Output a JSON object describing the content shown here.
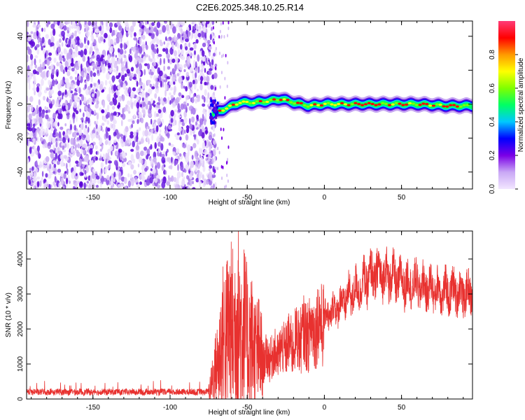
{
  "title": "C2E6.2025.348.10.25.R14",
  "chart_data": [
    {
      "type": "heatmap",
      "xlabel": "Height of straight line (km)",
      "ylabel": "Frequency (Hz)",
      "xlim": [
        -193,
        96
      ],
      "ylim": [
        -50,
        49
      ],
      "xticks": [
        -150,
        -100,
        -50,
        0,
        50
      ],
      "yticks": [
        -40,
        -20,
        0,
        20,
        40
      ],
      "grid": false,
      "colorbar": {
        "label": "Normalized spectral amplitude",
        "range": [
          0,
          1
        ],
        "ticks": [
          "0.0",
          "0.2",
          "0.4",
          "0.6",
          "0.8"
        ],
        "colors": [
          "#f2e6ff",
          "#c9a8f5",
          "#7a00e6",
          "#0000ff",
          "#00c8ff",
          "#00ff64",
          "#80ff00",
          "#ffff00",
          "#ff9900",
          "#ff0000",
          "#ff3c78"
        ]
      },
      "noise_region_x": [
        -193,
        -73
      ],
      "signal_track": [
        {
          "x": -73,
          "y": -6
        },
        {
          "x": -65,
          "y": -3
        },
        {
          "x": -55,
          "y": 1
        },
        {
          "x": -45,
          "y": 1
        },
        {
          "x": -35,
          "y": 2
        },
        {
          "x": -28,
          "y": 3
        },
        {
          "x": -20,
          "y": 1
        },
        {
          "x": -10,
          "y": -1
        },
        {
          "x": 0,
          "y": 0
        },
        {
          "x": 10,
          "y": 0
        },
        {
          "x": 20,
          "y": 0
        },
        {
          "x": 40,
          "y": 0
        },
        {
          "x": 60,
          "y": 0
        },
        {
          "x": 80,
          "y": -1
        },
        {
          "x": 96,
          "y": -1
        }
      ]
    },
    {
      "type": "line",
      "xlabel": "Height of straight line (km)",
      "ylabel": "SNR (10 * v/v)",
      "xlim": [
        -193,
        96
      ],
      "ylim": [
        0,
        4800
      ],
      "xticks": [
        -150,
        -100,
        -50,
        0,
        50
      ],
      "yticks": [
        0,
        1000,
        2000,
        3000,
        4000
      ],
      "grid": false,
      "line_color": "#e8312f",
      "series_envelope": [
        {
          "x": -193,
          "y": 200
        },
        {
          "x": -150,
          "y": 200
        },
        {
          "x": -100,
          "y": 200
        },
        {
          "x": -75,
          "y": 200
        },
        {
          "x": -70,
          "y": 900
        },
        {
          "x": -65,
          "y": 1800
        },
        {
          "x": -60,
          "y": 2000
        },
        {
          "x": -55,
          "y": 2200
        },
        {
          "x": -50,
          "y": 1700
        },
        {
          "x": -45,
          "y": 1400
        },
        {
          "x": -40,
          "y": 1100
        },
        {
          "x": -35,
          "y": 1200
        },
        {
          "x": -30,
          "y": 1300
        },
        {
          "x": -25,
          "y": 1500
        },
        {
          "x": -20,
          "y": 1600
        },
        {
          "x": -15,
          "y": 1800
        },
        {
          "x": -10,
          "y": 1900
        },
        {
          "x": -5,
          "y": 2100
        },
        {
          "x": 0,
          "y": 2300
        },
        {
          "x": 5,
          "y": 2500
        },
        {
          "x": 10,
          "y": 2700
        },
        {
          "x": 15,
          "y": 2900
        },
        {
          "x": 20,
          "y": 3100
        },
        {
          "x": 25,
          "y": 3300
        },
        {
          "x": 30,
          "y": 3500
        },
        {
          "x": 35,
          "y": 3600
        },
        {
          "x": 40,
          "y": 3550
        },
        {
          "x": 45,
          "y": 3450
        },
        {
          "x": 50,
          "y": 3350
        },
        {
          "x": 55,
          "y": 3300
        },
        {
          "x": 60,
          "y": 3250
        },
        {
          "x": 65,
          "y": 3200
        },
        {
          "x": 70,
          "y": 3150
        },
        {
          "x": 75,
          "y": 3100
        },
        {
          "x": 80,
          "y": 3050
        },
        {
          "x": 85,
          "y": 3100
        },
        {
          "x": 90,
          "y": 3000
        },
        {
          "x": 96,
          "y": 3050
        }
      ]
    }
  ]
}
